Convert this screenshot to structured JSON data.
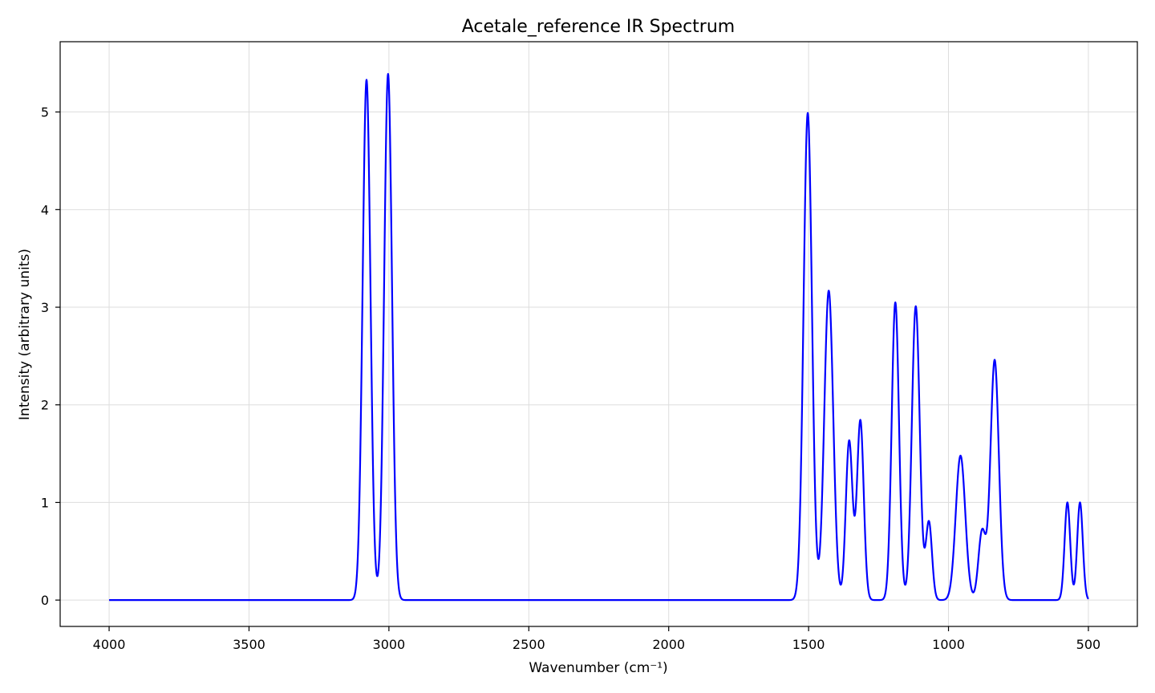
{
  "chart_data": {
    "type": "line",
    "title": "Acetale_reference IR Spectrum",
    "xlabel": "Wavenumber (cm⁻¹)",
    "ylabel": "Intensity (arbitrary units)",
    "xlim": [
      4175,
      325
    ],
    "ylim": [
      -0.27,
      5.72
    ],
    "x_reversed": true,
    "grid": true,
    "x_ticks": [
      4000,
      3500,
      3000,
      2500,
      2000,
      1500,
      1000,
      500
    ],
    "y_ticks": [
      0,
      1,
      2,
      3,
      4,
      5
    ],
    "series": [
      {
        "color": "#0000ff",
        "x_range": [
          4000,
          500
        ],
        "peaks": [
          {
            "center": 3080,
            "height": 5.33,
            "width": 14
          },
          {
            "center": 3003,
            "height": 5.39,
            "width": 14
          },
          {
            "center": 1503,
            "height": 4.99,
            "width": 15
          },
          {
            "center": 1428,
            "height": 3.17,
            "width": 16
          },
          {
            "center": 1355,
            "height": 1.63,
            "width": 12
          },
          {
            "center": 1315,
            "height": 1.84,
            "width": 12
          },
          {
            "center": 1190,
            "height": 3.05,
            "width": 13
          },
          {
            "center": 1117,
            "height": 3.01,
            "width": 14
          },
          {
            "center": 1070,
            "height": 0.8,
            "width": 11
          },
          {
            "center": 957,
            "height": 1.48,
            "width": 17
          },
          {
            "center": 880,
            "height": 0.7,
            "width": 13
          },
          {
            "center": 835,
            "height": 2.46,
            "width": 15
          },
          {
            "center": 575,
            "height": 1.0,
            "width": 10
          },
          {
            "center": 530,
            "height": 1.0,
            "width": 10
          }
        ]
      }
    ]
  }
}
